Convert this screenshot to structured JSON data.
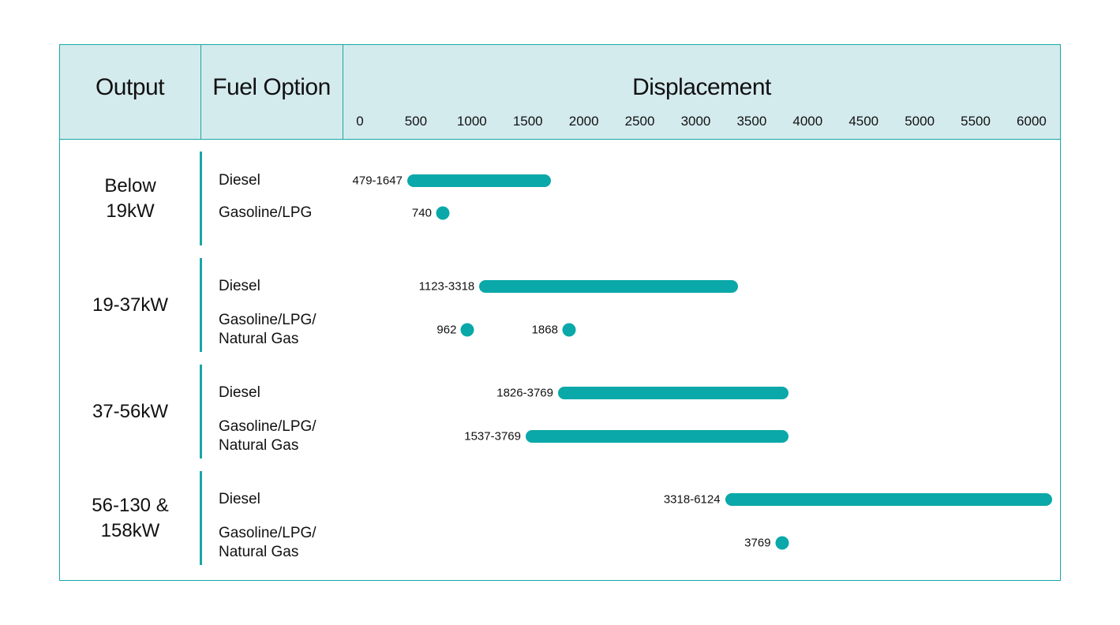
{
  "chart_data": {
    "type": "range-bar",
    "headers": {
      "output": "Output",
      "fuel": "Fuel Option",
      "displacement": "Displacement"
    },
    "x_ticks": [
      0,
      500,
      1000,
      1500,
      2000,
      2500,
      3000,
      3500,
      4000,
      4500,
      5000,
      5500,
      6000
    ],
    "xlim": [
      0,
      6000
    ],
    "color": "#0aa8a8",
    "groups": [
      {
        "output_lines": [
          "Below",
          "19kW"
        ],
        "rows": [
          {
            "fuel_lines": [
              "Diesel"
            ],
            "ranges": [
              {
                "min": 479,
                "max": 1647,
                "label": "479-1647"
              }
            ]
          },
          {
            "fuel_lines": [
              "Gasoline/LPG"
            ],
            "ranges": [
              {
                "min": 740,
                "max": 740,
                "label": "740"
              }
            ]
          }
        ]
      },
      {
        "output_lines": [
          "19-37kW"
        ],
        "rows": [
          {
            "fuel_lines": [
              "Diesel"
            ],
            "ranges": [
              {
                "min": 1123,
                "max": 3318,
                "label": "1123-3318"
              }
            ]
          },
          {
            "fuel_lines": [
              "Gasoline/LPG/",
              "Natural Gas"
            ],
            "ranges": [
              {
                "min": 962,
                "max": 962,
                "label": "962"
              },
              {
                "min": 1868,
                "max": 1868,
                "label": "1868"
              }
            ]
          }
        ]
      },
      {
        "output_lines": [
          "37-56kW"
        ],
        "rows": [
          {
            "fuel_lines": [
              "Diesel"
            ],
            "ranges": [
              {
                "min": 1826,
                "max": 3769,
                "label": "1826-3769"
              }
            ]
          },
          {
            "fuel_lines": [
              "Gasoline/LPG/",
              "Natural Gas"
            ],
            "ranges": [
              {
                "min": 1537,
                "max": 3769,
                "label": "1537-3769"
              }
            ]
          }
        ]
      },
      {
        "output_lines": [
          "56-130 &",
          "158kW"
        ],
        "rows": [
          {
            "fuel_lines": [
              "Diesel"
            ],
            "ranges": [
              {
                "min": 3318,
                "max": 6124,
                "label": "3318-6124"
              }
            ]
          },
          {
            "fuel_lines": [
              "Gasoline/LPG/",
              "Natural Gas"
            ],
            "ranges": [
              {
                "min": 3769,
                "max": 3769,
                "label": "3769"
              }
            ]
          }
        ]
      }
    ]
  }
}
